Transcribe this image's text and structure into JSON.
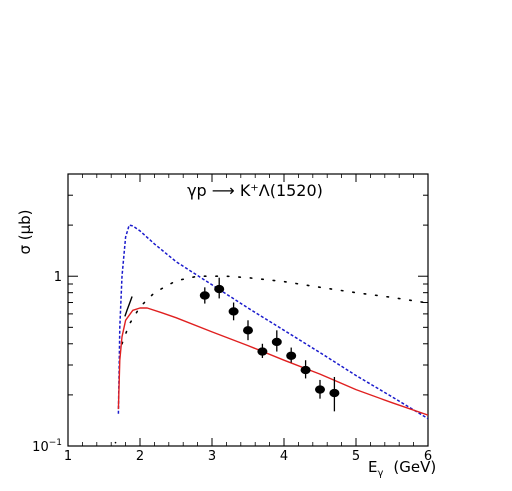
{
  "chart_data": {
    "type": "line",
    "title": "γp ⟶ K⁺Λ(1520)",
    "xlabel": "E",
    "xlabel_sub": "γ",
    "xlabel_unit": "(GeV)",
    "ylabel": "σ (μb)",
    "xlim": [
      1,
      6
    ],
    "ylim": [
      0.1,
      4.0
    ],
    "yscale": "log",
    "grid": false,
    "x_ticks": [
      1,
      2,
      3,
      4,
      5,
      6
    ],
    "y_ticks": [
      {
        "value": 1,
        "label": "1"
      },
      {
        "value": 0.1,
        "label": "10",
        "exponent": "−1"
      }
    ],
    "series": [
      {
        "style": "dashed",
        "color": "#1a1acc",
        "points": [
          [
            1.7,
            0.155
          ],
          [
            1.72,
            0.5
          ],
          [
            1.75,
            1.0
          ],
          [
            1.8,
            1.7
          ],
          [
            1.85,
            2.0
          ],
          [
            1.9,
            1.98
          ],
          [
            2.0,
            1.85
          ],
          [
            2.2,
            1.55
          ],
          [
            2.5,
            1.22
          ],
          [
            3.0,
            0.89
          ],
          [
            3.5,
            0.65
          ],
          [
            4.0,
            0.48
          ],
          [
            4.5,
            0.355
          ],
          [
            5.0,
            0.26
          ],
          [
            5.5,
            0.195
          ],
          [
            6.0,
            0.145
          ]
        ]
      },
      {
        "style": "dotted",
        "color": "#000000",
        "points": [
          [
            1.75,
            0.4
          ],
          [
            1.85,
            0.52
          ],
          [
            2.0,
            0.66
          ],
          [
            2.2,
            0.8
          ],
          [
            2.5,
            0.94
          ],
          [
            2.8,
            1.0
          ],
          [
            3.2,
            1.0
          ],
          [
            3.5,
            0.98
          ],
          [
            4.0,
            0.93
          ],
          [
            4.5,
            0.86
          ],
          [
            5.0,
            0.8
          ],
          [
            5.5,
            0.75
          ],
          [
            5.95,
            0.7
          ]
        ]
      },
      {
        "style": "solid",
        "color": "#e02020",
        "points": [
          [
            1.7,
            0.165
          ],
          [
            1.72,
            0.32
          ],
          [
            1.75,
            0.44
          ],
          [
            1.8,
            0.55
          ],
          [
            1.9,
            0.63
          ],
          [
            2.0,
            0.65
          ],
          [
            2.1,
            0.65
          ],
          [
            2.3,
            0.61
          ],
          [
            2.5,
            0.57
          ],
          [
            3.0,
            0.47
          ],
          [
            3.5,
            0.39
          ],
          [
            4.0,
            0.32
          ],
          [
            4.5,
            0.265
          ],
          [
            5.0,
            0.215
          ],
          [
            5.5,
            0.18
          ],
          [
            6.0,
            0.152
          ]
        ]
      },
      {
        "style": "solid",
        "color": "#000000",
        "points": [
          [
            1.79,
            0.58
          ],
          [
            1.82,
            0.63
          ],
          [
            1.86,
            0.7
          ],
          [
            1.89,
            0.76
          ]
        ]
      },
      {
        "style": "dotted-sparse",
        "color": "#000000",
        "points": [
          [
            1.65,
            0.105
          ],
          [
            1.7,
            0.103
          ]
        ]
      }
    ],
    "data_points": [
      {
        "x": 2.9,
        "y": 0.77,
        "yerr_low": 0.69,
        "yerr_high": 0.86
      },
      {
        "x": 3.1,
        "y": 0.84,
        "yerr_low": 0.74,
        "yerr_high": 0.98
      },
      {
        "x": 3.3,
        "y": 0.62,
        "yerr_low": 0.55,
        "yerr_high": 0.7
      },
      {
        "x": 3.5,
        "y": 0.48,
        "yerr_low": 0.42,
        "yerr_high": 0.55
      },
      {
        "x": 3.7,
        "y": 0.36,
        "yerr_low": 0.33,
        "yerr_high": 0.4
      },
      {
        "x": 3.9,
        "y": 0.41,
        "yerr_low": 0.36,
        "yerr_high": 0.48
      },
      {
        "x": 4.1,
        "y": 0.34,
        "yerr_low": 0.31,
        "yerr_high": 0.38
      },
      {
        "x": 4.3,
        "y": 0.28,
        "yerr_low": 0.25,
        "yerr_high": 0.32
      },
      {
        "x": 4.5,
        "y": 0.215,
        "yerr_low": 0.19,
        "yerr_high": 0.245
      },
      {
        "x": 4.7,
        "y": 0.205,
        "yerr_low": 0.16,
        "yerr_high": 0.255
      }
    ]
  }
}
